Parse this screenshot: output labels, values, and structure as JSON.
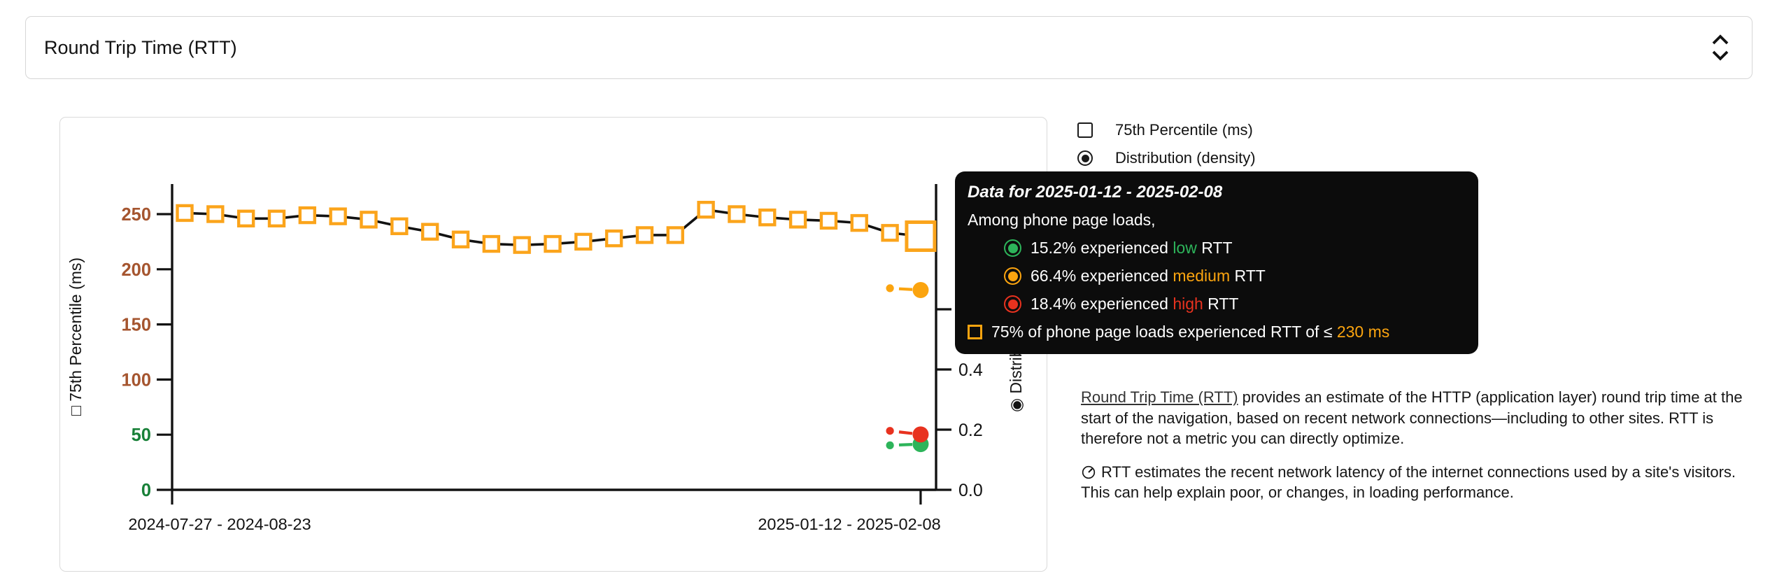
{
  "select_bar": {
    "label": "Round Trip Time (RTT)",
    "icon": "unfold-more"
  },
  "legend": {
    "items": [
      {
        "label": "75th Percentile (ms)",
        "control": "checkbox",
        "checked": false
      },
      {
        "label": "Distribution (density)",
        "control": "radio",
        "checked": true
      }
    ]
  },
  "chart_data": {
    "type": "line",
    "title": "",
    "x_tick_labels": [
      "2024-07-27 - 2024-08-23",
      "2025-01-12 - 2025-02-08"
    ],
    "left_axis": {
      "prefix_glyph": "□",
      "label": "75th Percentile (ms)",
      "ticks": [
        0,
        50,
        100,
        150,
        200,
        250
      ],
      "tick_colors": [
        "#188038",
        "#188038",
        "#A5552F",
        "#A5552F",
        "#A5552F",
        "#A5552F"
      ],
      "range": [
        0,
        277
      ]
    },
    "right_axis": {
      "prefix_glyph": "◉",
      "label": "Distribution (density)",
      "ticks": [
        "0.0",
        "0.2",
        "0.4",
        "0.6"
      ],
      "range": [
        0,
        1.02
      ]
    },
    "percentile_series": {
      "name": "75th Percentile (ms)",
      "marker_color": "#FBA41B",
      "line_color": "#121212",
      "values": [
        251,
        250,
        246,
        246,
        249,
        248,
        245,
        239,
        234,
        227,
        223,
        222,
        223,
        225,
        228,
        231,
        231,
        254,
        250,
        247,
        245,
        244,
        242,
        233,
        230
      ],
      "selected_index": 24,
      "selected_value_ms": 230
    },
    "density_series": [
      {
        "name": "low",
        "color": "#2DB45A",
        "values": [
          0.148,
          0.152
        ]
      },
      {
        "name": "medium",
        "color": "#FBA40F",
        "values": [
          0.67,
          0.664
        ]
      },
      {
        "name": "high",
        "color": "#E8321F",
        "values": [
          0.196,
          0.184
        ]
      }
    ]
  },
  "tooltip": {
    "title": "Data for 2025-01-12 - 2025-02-08",
    "subtitle": "Among phone page loads,",
    "rows": [
      {
        "icon": "circle",
        "color": "#2DB45A",
        "indent": true,
        "text_before": "15.2% experienced ",
        "highlight": "low",
        "highlight_color": "#2DB45A",
        "text_after": " RTT"
      },
      {
        "icon": "circle",
        "color": "#FBA40F",
        "indent": true,
        "text_before": "66.4% experienced ",
        "highlight": "medium",
        "highlight_color": "#FBA40F",
        "text_after": " RTT"
      },
      {
        "icon": "circle",
        "color": "#E8321F",
        "indent": true,
        "text_before": "18.4% experienced ",
        "highlight": "high",
        "highlight_color": "#E8321F",
        "text_after": " RTT"
      },
      {
        "icon": "square",
        "color": "#FBA40F",
        "indent": false,
        "text_before": "75% of phone page loads experienced RTT of ≤ ",
        "highlight": "230 ms",
        "highlight_color": "#FBA40F",
        "text_after": ""
      }
    ]
  },
  "description": {
    "p1_link": "Round Trip Time (RTT)",
    "p1_rest": " provides an estimate of the HTTP (application layer) round trip time at the start of the navigation, based on recent network connections—including to other sites. RTT is therefore not a metric you can directly optimize.",
    "p2_icon": "gauge-icon",
    "p2_text": "RTT estimates the recent network latency of the internet connections used by a site's visitors. This can help explain poor, or changes, in loading performance."
  }
}
